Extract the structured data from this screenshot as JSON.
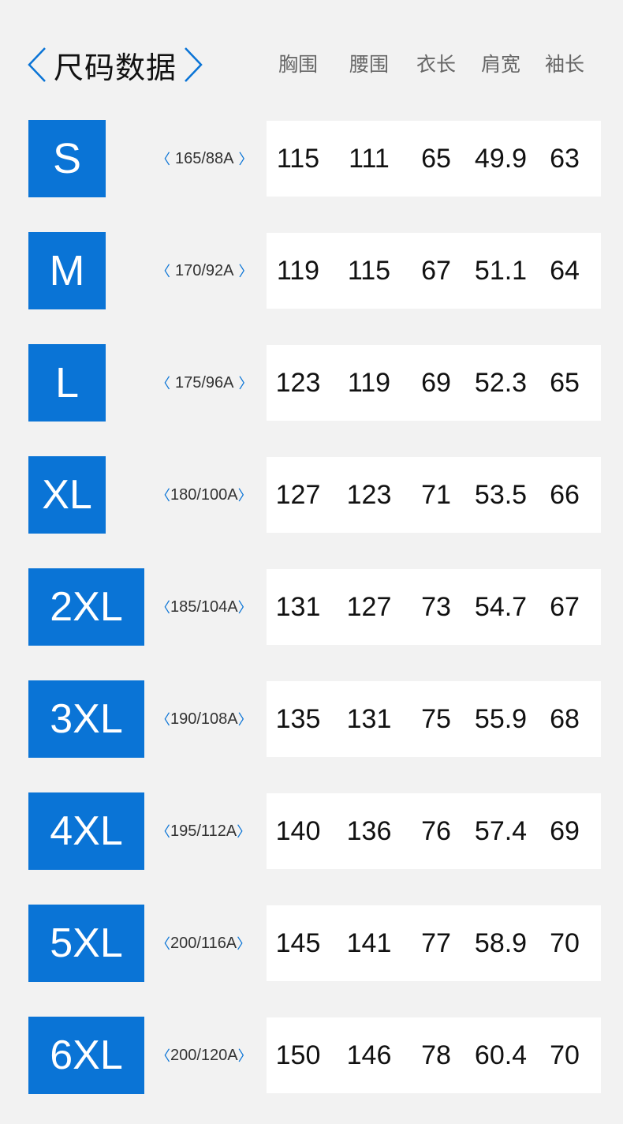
{
  "header": {
    "title": "尺码数据",
    "columns": [
      "胸围",
      "腰围",
      "衣长",
      "肩宽",
      "袖长"
    ]
  },
  "accent_color": "#0a74d6",
  "rows": [
    {
      "size": "S",
      "spec": "165/88A",
      "values": [
        "115",
        "111",
        "65",
        "49.9",
        "63"
      ]
    },
    {
      "size": "M",
      "spec": "170/92A",
      "values": [
        "119",
        "115",
        "67",
        "51.1",
        "64"
      ]
    },
    {
      "size": "L",
      "spec": "175/96A",
      "values": [
        "123",
        "119",
        "69",
        "52.3",
        "65"
      ]
    },
    {
      "size": "XL",
      "spec": "180/100A",
      "values": [
        "127",
        "123",
        "71",
        "53.5",
        "66"
      ]
    },
    {
      "size": "2XL",
      "spec": "185/104A",
      "values": [
        "131",
        "127",
        "73",
        "54.7",
        "67"
      ]
    },
    {
      "size": "3XL",
      "spec": "190/108A",
      "values": [
        "135",
        "131",
        "75",
        "55.9",
        "68"
      ]
    },
    {
      "size": "4XL",
      "spec": "195/112A",
      "values": [
        "140",
        "136",
        "76",
        "57.4",
        "69"
      ]
    },
    {
      "size": "5XL",
      "spec": "200/116A",
      "values": [
        "145",
        "141",
        "77",
        "58.9",
        "70"
      ]
    },
    {
      "size": "6XL",
      "spec": "200/120A",
      "values": [
        "150",
        "146",
        "78",
        "60.4",
        "70"
      ]
    }
  ]
}
